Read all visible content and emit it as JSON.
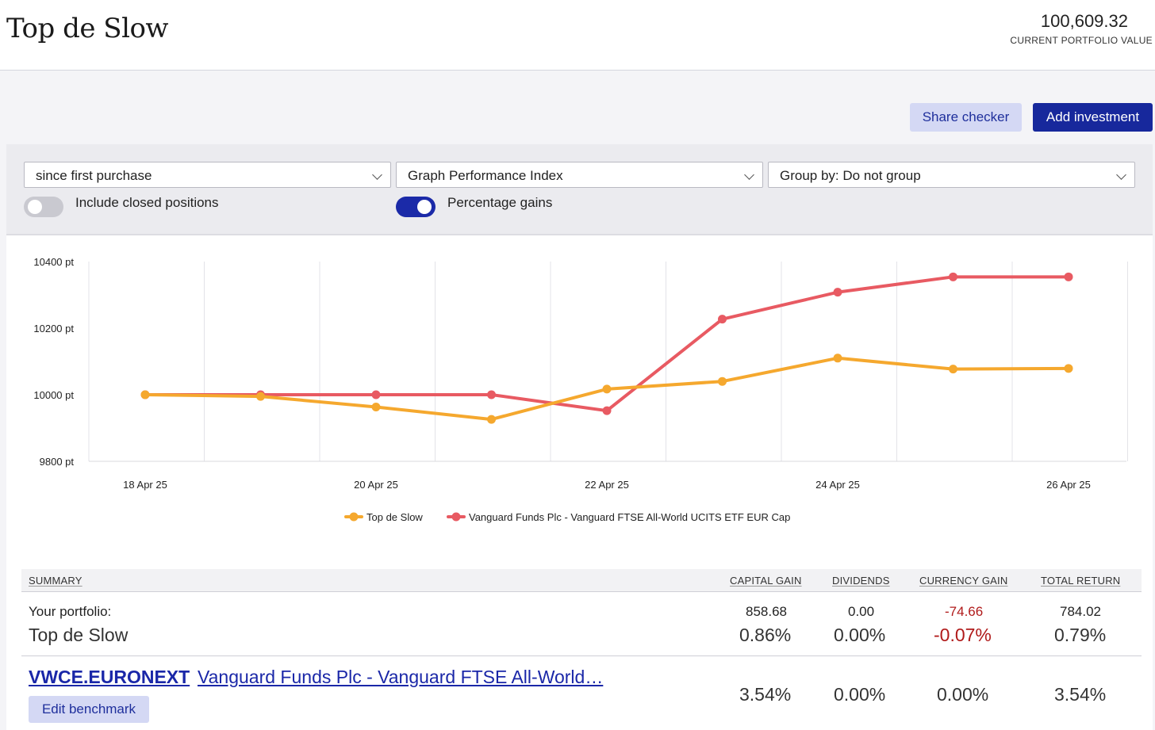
{
  "header": {
    "title": "Top de Slow",
    "portfolio_value": "100,609.32",
    "portfolio_value_label": "CURRENT PORTFOLIO VALUE"
  },
  "actions": {
    "share_checker": "Share checker",
    "add_investment": "Add investment"
  },
  "filters": {
    "period": "since first purchase",
    "graph_type": "Graph Performance Index",
    "group_by": "Group by: Do not group",
    "include_closed_label": "Include closed positions",
    "include_closed_on": false,
    "percentage_gains_label": "Percentage gains",
    "percentage_gains_on": true
  },
  "chart_data": {
    "type": "line",
    "x": [
      "18 Apr 25",
      "19 Apr 25",
      "20 Apr 25",
      "21 Apr 25",
      "22 Apr 25",
      "23 Apr 25",
      "24 Apr 25",
      "25 Apr 25",
      "26 Apr 25"
    ],
    "x_tick_labels": [
      "18 Apr 25",
      "20 Apr 25",
      "22 Apr 25",
      "24 Apr 25",
      "26 Apr 25"
    ],
    "y_tick_labels": [
      "10400 pt",
      "10200 pt",
      "10000 pt",
      "9800 pt"
    ],
    "ylim": [
      9800,
      10400
    ],
    "grid": "vertical",
    "legend_position": "bottom",
    "series": [
      {
        "name": "Top de Slow",
        "color": "#f5a82e",
        "values": [
          10000,
          9995,
          9963,
          9926,
          10017,
          10040,
          10110,
          10077,
          10079
        ]
      },
      {
        "name": "Vanguard Funds Plc - Vanguard FTSE All-World UCITS ETF EUR Cap",
        "color": "#e85a62",
        "values": [
          10000,
          10000,
          10000,
          10000,
          9952,
          10227,
          10308,
          10354,
          10354
        ]
      }
    ]
  },
  "summary": {
    "headers": {
      "summary": "SUMMARY",
      "capital_gain": "CAPITAL GAIN",
      "dividends": "DIVIDENDS",
      "currency_gain": "CURRENCY GAIN",
      "total_return": "TOTAL RETURN"
    },
    "portfolio": {
      "label": "Your portfolio:",
      "name": "Top de Slow",
      "capital_gain": "858.68",
      "capital_gain_pct": "0.86%",
      "dividends": "0.00",
      "dividends_pct": "0.00%",
      "currency_gain": "-74.66",
      "currency_gain_pct": "-0.07%",
      "total_return": "784.02",
      "total_return_pct": "0.79%"
    },
    "benchmark": {
      "ticker": "VWCE.EURONEXT",
      "name": "Vanguard Funds Plc - Vanguard FTSE All-World…",
      "edit_label": "Edit benchmark",
      "capital_gain_pct": "3.54%",
      "dividends_pct": "0.00%",
      "currency_gain_pct": "0.00%",
      "total_return_pct": "3.54%"
    },
    "negative_color": "#b01a1a"
  }
}
